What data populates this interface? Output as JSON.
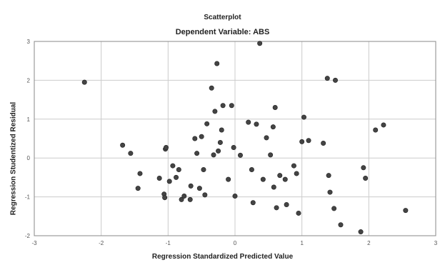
{
  "chart_data": {
    "type": "scatter",
    "title": "Scatterplot",
    "subtitle": "Dependent Variable: ABS",
    "xlabel": "Regression Standardized Predicted Value",
    "ylabel": "Regression Studentized Residual",
    "xlim": [
      -3,
      3
    ],
    "ylim": [
      -2,
      3
    ],
    "xticks": [
      -3,
      -2,
      -1,
      0,
      1,
      2,
      3
    ],
    "yticks": [
      -2,
      -1,
      0,
      1,
      2,
      3
    ],
    "grid": true,
    "legend": "none",
    "marker_color": "#444444",
    "background_color": "#ffffff",
    "grid_color": "#cccccc",
    "points": [
      {
        "x": -2.25,
        "y": 1.95
      },
      {
        "x": -1.68,
        "y": 0.33
      },
      {
        "x": -1.56,
        "y": 0.12
      },
      {
        "x": -1.42,
        "y": -0.4
      },
      {
        "x": -1.45,
        "y": -0.78
      },
      {
        "x": -1.13,
        "y": -0.52
      },
      {
        "x": -1.06,
        "y": -0.93
      },
      {
        "x": -1.05,
        "y": -1.02
      },
      {
        "x": -1.04,
        "y": 0.23
      },
      {
        "x": -1.03,
        "y": 0.27
      },
      {
        "x": -0.98,
        "y": -0.6
      },
      {
        "x": -0.93,
        "y": -0.2
      },
      {
        "x": -0.88,
        "y": -0.5
      },
      {
        "x": -0.84,
        "y": -0.3
      },
      {
        "x": -0.8,
        "y": -1.07
      },
      {
        "x": -0.76,
        "y": -0.98
      },
      {
        "x": -0.67,
        "y": -1.07
      },
      {
        "x": -0.66,
        "y": -0.72
      },
      {
        "x": -0.6,
        "y": 0.5
      },
      {
        "x": -0.57,
        "y": 0.12
      },
      {
        "x": -0.53,
        "y": -0.78
      },
      {
        "x": -0.5,
        "y": 0.55
      },
      {
        "x": -0.47,
        "y": -0.3
      },
      {
        "x": -0.45,
        "y": -0.95
      },
      {
        "x": -0.42,
        "y": 0.88
      },
      {
        "x": -0.35,
        "y": 1.8
      },
      {
        "x": -0.32,
        "y": 0.08
      },
      {
        "x": -0.3,
        "y": 1.2
      },
      {
        "x": -0.27,
        "y": 2.43
      },
      {
        "x": -0.25,
        "y": 0.18
      },
      {
        "x": -0.22,
        "y": 0.4
      },
      {
        "x": -0.2,
        "y": 0.72
      },
      {
        "x": -0.18,
        "y": 1.35
      },
      {
        "x": -0.1,
        "y": -0.55
      },
      {
        "x": -0.05,
        "y": 1.35
      },
      {
        "x": -0.02,
        "y": 0.27
      },
      {
        "x": 0.0,
        "y": -0.98
      },
      {
        "x": 0.08,
        "y": 0.07
      },
      {
        "x": 0.2,
        "y": 0.92
      },
      {
        "x": 0.25,
        "y": -0.3
      },
      {
        "x": 0.27,
        "y": -1.15
      },
      {
        "x": 0.32,
        "y": 0.87
      },
      {
        "x": 0.37,
        "y": 2.95
      },
      {
        "x": 0.42,
        "y": -0.55
      },
      {
        "x": 0.47,
        "y": 0.52
      },
      {
        "x": 0.53,
        "y": 0.08
      },
      {
        "x": 0.57,
        "y": 0.8
      },
      {
        "x": 0.58,
        "y": -0.75
      },
      {
        "x": 0.6,
        "y": 1.3
      },
      {
        "x": 0.62,
        "y": -1.28
      },
      {
        "x": 0.67,
        "y": -0.45
      },
      {
        "x": 0.75,
        "y": -0.55
      },
      {
        "x": 0.77,
        "y": -1.2
      },
      {
        "x": 0.88,
        "y": -0.2
      },
      {
        "x": 0.92,
        "y": -0.4
      },
      {
        "x": 0.95,
        "y": -1.42
      },
      {
        "x": 1.0,
        "y": 0.42
      },
      {
        "x": 1.03,
        "y": 1.05
      },
      {
        "x": 1.1,
        "y": 0.45
      },
      {
        "x": 1.32,
        "y": 0.38
      },
      {
        "x": 1.38,
        "y": 2.05
      },
      {
        "x": 1.4,
        "y": -0.45
      },
      {
        "x": 1.42,
        "y": -0.88
      },
      {
        "x": 1.48,
        "y": -1.3
      },
      {
        "x": 1.5,
        "y": 2.0
      },
      {
        "x": 1.58,
        "y": -1.72
      },
      {
        "x": 1.88,
        "y": -1.9
      },
      {
        "x": 1.92,
        "y": -0.25
      },
      {
        "x": 1.95,
        "y": -0.52
      },
      {
        "x": 2.1,
        "y": 0.72
      },
      {
        "x": 2.22,
        "y": 0.85
      },
      {
        "x": 2.55,
        "y": -1.35
      }
    ]
  }
}
